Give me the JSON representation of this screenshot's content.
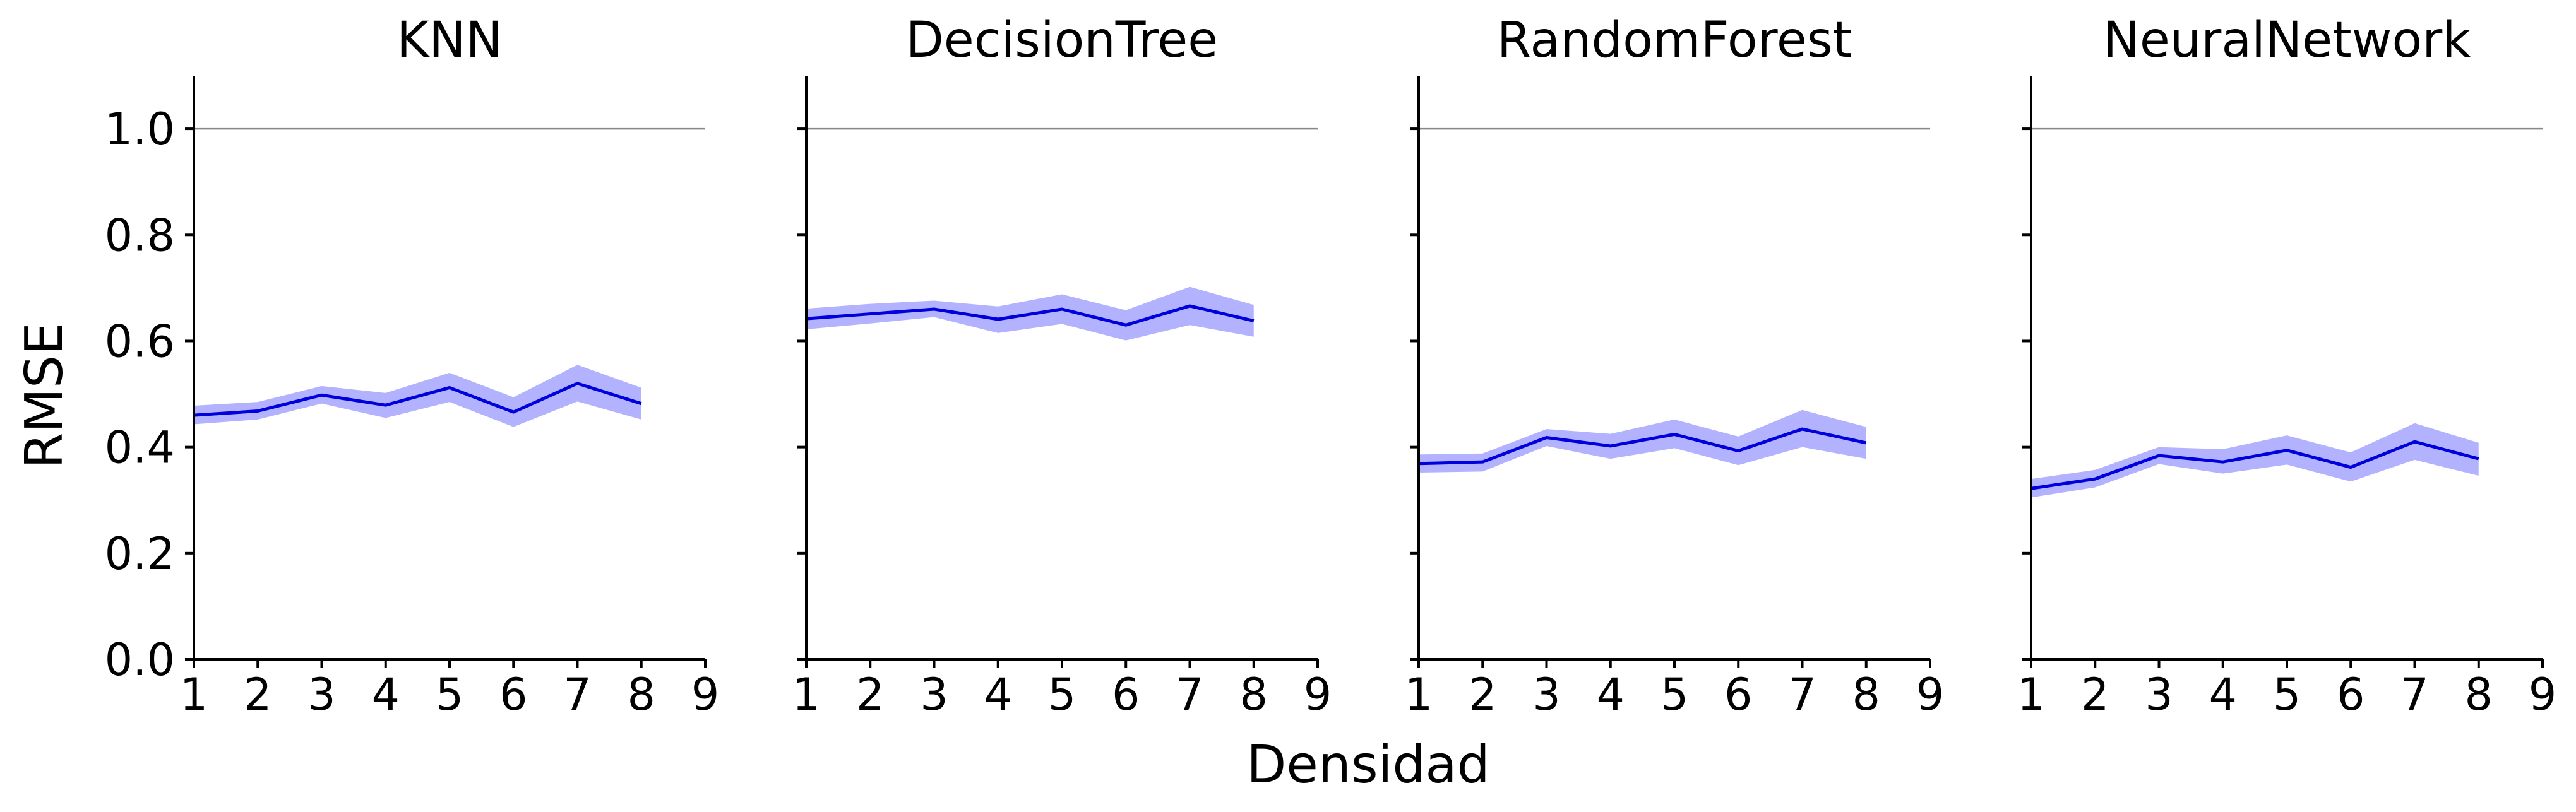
{
  "chart_data": {
    "type": "line",
    "xlabel": "Densidad",
    "ylabel": "RMSE",
    "xlim": [
      1,
      9
    ],
    "ylim": [
      0,
      1.1
    ],
    "xticks": [
      "1",
      "2",
      "3",
      "4",
      "5",
      "6",
      "7",
      "8",
      "9"
    ],
    "yticks": [
      "0.0",
      "0.2",
      "0.4",
      "0.6",
      "0.8",
      "1.0"
    ],
    "reference_line_y": 1.0,
    "colors": {
      "line": "#0000dd",
      "band": "#0000ff"
    },
    "panels": [
      {
        "title": "KNN",
        "x": [
          1,
          2,
          3,
          4,
          5,
          6,
          7,
          8
        ],
        "mean": [
          0.46,
          0.468,
          0.498,
          0.479,
          0.512,
          0.466,
          0.52,
          0.482
        ],
        "lower": [
          0.443,
          0.452,
          0.482,
          0.455,
          0.485,
          0.438,
          0.486,
          0.452
        ],
        "upper": [
          0.478,
          0.485,
          0.515,
          0.502,
          0.54,
          0.494,
          0.555,
          0.512
        ]
      },
      {
        "title": "DecisionTree",
        "x": [
          1,
          2,
          3,
          4,
          5,
          6,
          7,
          8
        ],
        "mean": [
          0.642,
          0.651,
          0.66,
          0.641,
          0.66,
          0.63,
          0.666,
          0.638
        ],
        "lower": [
          0.622,
          0.633,
          0.645,
          0.615,
          0.632,
          0.601,
          0.63,
          0.608
        ],
        "upper": [
          0.661,
          0.67,
          0.676,
          0.665,
          0.688,
          0.658,
          0.702,
          0.668
        ]
      },
      {
        "title": "RandomForest",
        "x": [
          1,
          2,
          3,
          4,
          5,
          6,
          7,
          8
        ],
        "mean": [
          0.369,
          0.372,
          0.418,
          0.402,
          0.424,
          0.393,
          0.434,
          0.408
        ],
        "lower": [
          0.352,
          0.354,
          0.402,
          0.378,
          0.398,
          0.366,
          0.4,
          0.378
        ],
        "upper": [
          0.386,
          0.388,
          0.434,
          0.425,
          0.452,
          0.42,
          0.47,
          0.438
        ]
      },
      {
        "title": "NeuralNetwork",
        "x": [
          1,
          2,
          3,
          4,
          5,
          6,
          7,
          8
        ],
        "mean": [
          0.322,
          0.34,
          0.384,
          0.372,
          0.394,
          0.362,
          0.41,
          0.378
        ],
        "lower": [
          0.305,
          0.324,
          0.368,
          0.35,
          0.367,
          0.335,
          0.376,
          0.346
        ],
        "upper": [
          0.34,
          0.357,
          0.4,
          0.396,
          0.422,
          0.39,
          0.445,
          0.408
        ]
      }
    ]
  }
}
